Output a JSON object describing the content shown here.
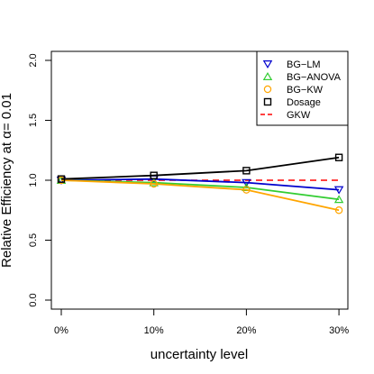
{
  "chart_data": {
    "type": "line",
    "title": "",
    "xlabel": "uncertainty level",
    "ylabel": "Relative Efficiency at  α= 0.01",
    "categories": [
      "0%",
      "10%",
      "20%",
      "30%"
    ],
    "y_ticks": [
      "0.0",
      "0.5",
      "1.0",
      "1.5",
      "2.0"
    ],
    "ylim": [
      0.0,
      2.0
    ],
    "grid": false,
    "legend_position": "top-right",
    "series": [
      {
        "name": "BG−LM",
        "values": [
          1.0,
          1.01,
          0.98,
          0.92
        ],
        "color": "#0000CD",
        "marker": "triangle-down"
      },
      {
        "name": "BG−ANOVA",
        "values": [
          1.0,
          0.98,
          0.94,
          0.84
        ],
        "color": "#32CD32",
        "marker": "triangle-up"
      },
      {
        "name": "BG−KW",
        "values": [
          1.0,
          0.97,
          0.92,
          0.75
        ],
        "color": "#FFA500",
        "marker": "circle"
      },
      {
        "name": "Dosage",
        "values": [
          1.01,
          1.04,
          1.08,
          1.19
        ],
        "color": "#000000",
        "marker": "square"
      }
    ],
    "reference_line": {
      "name": "GKW",
      "value": 1.0,
      "color": "#FF0000",
      "style": "dashed"
    }
  }
}
